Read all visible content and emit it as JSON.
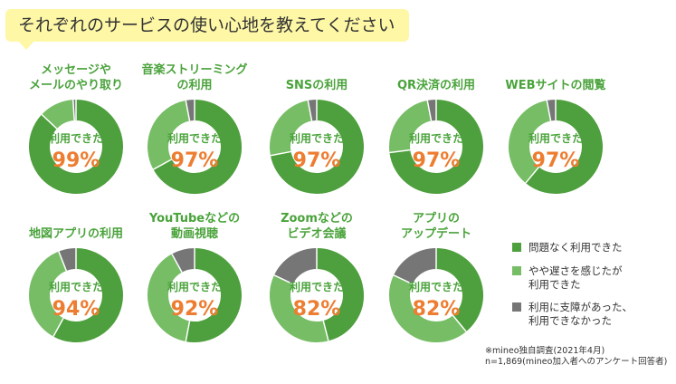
{
  "header": {
    "title": "それぞれのサービスの使い心地を教えてください"
  },
  "colors": {
    "dark_green": "#4e9f3d",
    "light_green": "#76bd65",
    "gray": "#767676",
    "accent_orange": "#ed7d31",
    "label_green": "#4aa33b"
  },
  "chart_data": {
    "type": "pie",
    "center_label": "利用できた",
    "unit": "%",
    "legend": [
      {
        "name": "問題なく利用できた",
        "color": "#4e9f3d"
      },
      {
        "name": "やや遅さを感じたが\n利用できた",
        "color": "#76bd65"
      },
      {
        "name": "利用に支障があった、\n利用できなかった",
        "color": "#767676"
      }
    ],
    "charts": [
      {
        "title": [
          "メッセージや",
          "メールのやり取り"
        ],
        "total_usable": 99,
        "values": [
          87,
          12,
          1
        ]
      },
      {
        "title": [
          "音楽ストリーミング",
          "の利用"
        ],
        "total_usable": 97,
        "values": [
          67,
          30,
          3
        ]
      },
      {
        "title": [
          "SNSの利用"
        ],
        "total_usable": 97,
        "values": [
          72,
          25,
          3
        ]
      },
      {
        "title": [
          "QR決済の利用"
        ],
        "total_usable": 97,
        "values": [
          73,
          24,
          3
        ]
      },
      {
        "title": [
          "WEBサイトの閲覧"
        ],
        "total_usable": 97,
        "values": [
          61,
          36,
          3
        ]
      },
      {
        "title": [
          "地図アプリの利用"
        ],
        "total_usable": 94,
        "values": [
          58,
          36,
          6
        ]
      },
      {
        "title": [
          "YouTubeなどの",
          "動画視聴"
        ],
        "total_usable": 92,
        "values": [
          53,
          39,
          8
        ]
      },
      {
        "title": [
          "Zoomなどの",
          "ビデオ会議"
        ],
        "total_usable": 82,
        "values": [
          46,
          36,
          18
        ]
      },
      {
        "title": [
          "アプリの",
          "アップデート"
        ],
        "total_usable": 82,
        "values": [
          39,
          43,
          18
        ]
      }
    ]
  },
  "footnote": "※mineo独自調査(2021年4月)\nn=1,869(mineo加入者へのアンケート回答者)"
}
